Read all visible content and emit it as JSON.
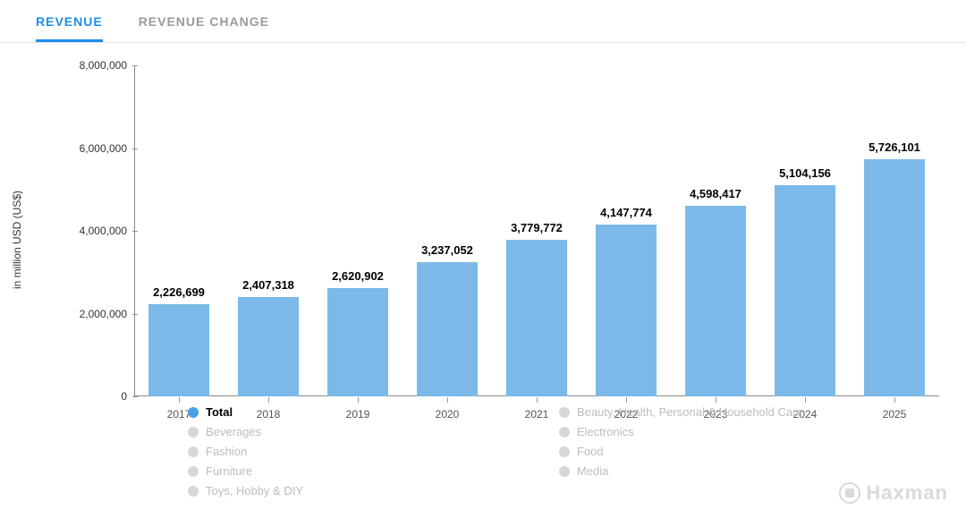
{
  "tabs": [
    {
      "label": "REVENUE",
      "active": true
    },
    {
      "label": "REVENUE CHANGE",
      "active": false
    }
  ],
  "chart": {
    "type": "bar",
    "y_label": "in million USD (US$)",
    "y_label_fontsize": 12,
    "ylim": [
      0,
      8000000
    ],
    "ytick_step": 2000000,
    "y_ticks": [
      {
        "value": 0,
        "label": "0"
      },
      {
        "value": 2000000,
        "label": "2,000,000"
      },
      {
        "value": 4000000,
        "label": "4,000,000"
      },
      {
        "value": 6000000,
        "label": "6,000,000"
      },
      {
        "value": 8000000,
        "label": "8,000,000"
      }
    ],
    "categories": [
      "2017",
      "2018",
      "2019",
      "2020",
      "2021",
      "2022",
      "2023",
      "2024",
      "2025"
    ],
    "values": [
      2226699,
      2407318,
      2620902,
      3237052,
      3779772,
      4147774,
      4598417,
      5104156,
      5726101
    ],
    "value_labels": [
      "2,226,699",
      "2,407,318",
      "2,620,902",
      "3,237,052",
      "3,779,772",
      "4,147,774",
      "4,598,417",
      "5,104,156",
      "5,726,101"
    ],
    "bar_color": "#7cb9e8",
    "bar_width": 0.68,
    "value_label_fontsize": 13,
    "value_label_fontweight": 700,
    "axis_label_fontsize": 12,
    "axis_line_color": "#888888",
    "tick_color": "#999999",
    "background_color": "#ffffff",
    "grid": false
  },
  "legend": {
    "columns": [
      [
        {
          "label": "Total",
          "active": true
        },
        {
          "label": "Beverages",
          "active": false
        },
        {
          "label": "Fashion",
          "active": false
        },
        {
          "label": "Furniture",
          "active": false
        },
        {
          "label": "Toys, Hobby & DIY",
          "active": false
        }
      ],
      [
        {
          "label": "Beauty, Health, Personal & Household Care",
          "active": false
        },
        {
          "label": "Electronics",
          "active": false
        },
        {
          "label": "Food",
          "active": false
        },
        {
          "label": "Media",
          "active": false
        }
      ]
    ],
    "active_dot_color": "#49a0e8",
    "inactive_dot_color": "#d7d7d7",
    "inactive_text_color": "#bdbdbd",
    "fontsize": 13
  },
  "watermark": {
    "text": "Haxman"
  }
}
